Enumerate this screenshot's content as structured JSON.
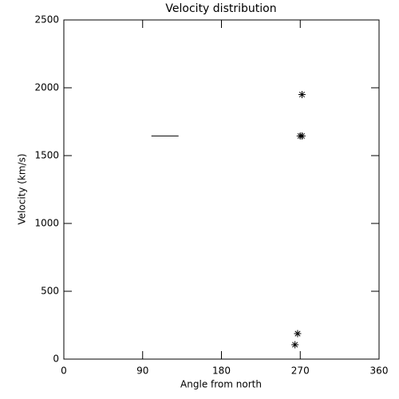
{
  "chart_data": {
    "type": "scatter",
    "title": "Velocity distribution",
    "xlabel": "Angle from north",
    "ylabel": "Velocity (km/s)",
    "points": {
      "x": [
        272,
        270,
        272,
        267,
        264
      ],
      "values": [
        1950,
        1645,
        1645,
        188,
        106
      ],
      "marker": "asterisk",
      "color": "#000000"
    },
    "segment": {
      "x": [
        100,
        131
      ],
      "values": [
        1645,
        1645
      ],
      "color": "#000000"
    },
    "xlim": [
      0,
      360
    ],
    "xticks": [
      0,
      90,
      180,
      270,
      360
    ],
    "ylim": [
      0,
      2500
    ],
    "yticks": [
      0,
      500,
      1000,
      1500,
      2000,
      2500
    ],
    "grid": false
  }
}
